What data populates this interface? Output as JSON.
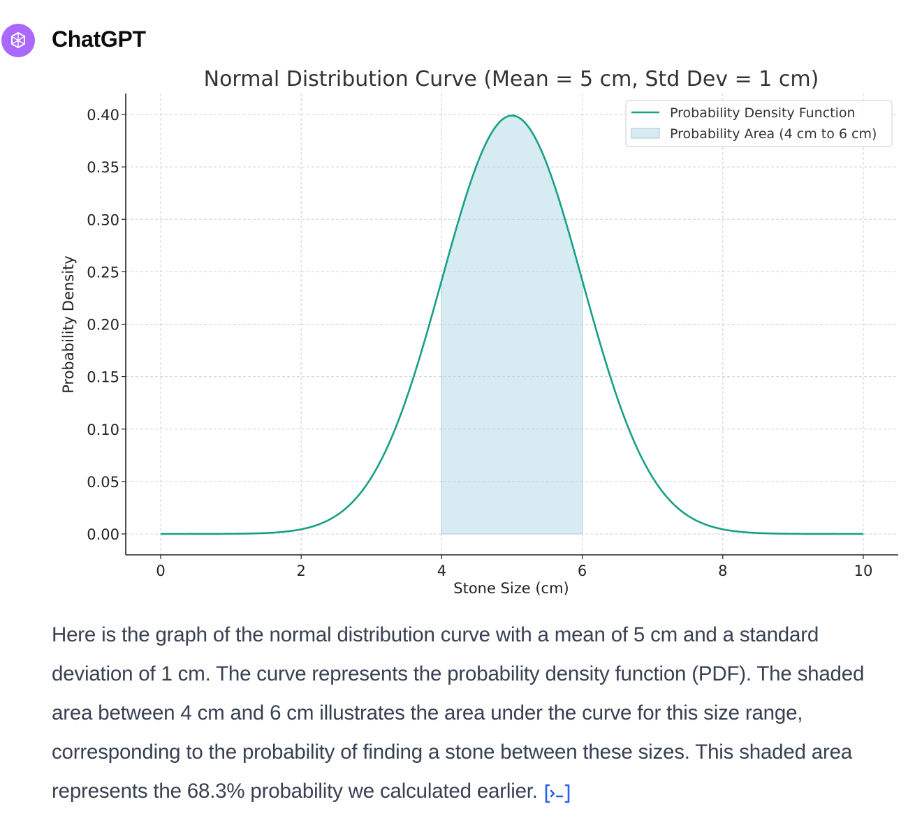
{
  "author": "ChatGPT",
  "message_text": "Here is the graph of the normal distribution curve with a mean of 5 cm and a standard deviation of 1 cm. The curve represents the probability density function (PDF). The shaded area between 4 cm and 6 cm illustrates the area under the curve for this size range, corresponding to the probability of finding a stone between these sizes. This shaded area represents the 68.3% probability we calculated earlier.",
  "icons": {
    "avatar": "openai-logo-icon",
    "analysis": "code-analysis-icon"
  },
  "colors": {
    "avatar_bg": "#ab68ff",
    "curve": "#16a085",
    "shade": "#add8e6"
  },
  "chart_data": {
    "type": "line",
    "title": "Normal Distribution Curve (Mean = 5 cm, Std Dev = 1 cm)",
    "xlabel": "Stone Size (cm)",
    "ylabel": "Probability Density",
    "xlim": [
      0,
      10
    ],
    "ylim": [
      0,
      0.4
    ],
    "xticks": [
      "0",
      "2",
      "4",
      "6",
      "8",
      "10"
    ],
    "yticks": [
      "0.00",
      "0.05",
      "0.10",
      "0.15",
      "0.20",
      "0.25",
      "0.30",
      "0.35",
      "0.40"
    ],
    "grid": true,
    "legend_position": "top-right",
    "series": [
      {
        "name": "Probability Density Function",
        "kind": "line",
        "mean": 5,
        "std": 1,
        "x": [
          0,
          0.5,
          1,
          1.5,
          2,
          2.5,
          3,
          3.5,
          4,
          4.5,
          5,
          5.5,
          6,
          6.5,
          7,
          7.5,
          8,
          8.5,
          9,
          9.5,
          10
        ],
        "y": [
          0.0,
          0.0,
          0.0001,
          0.0009,
          0.0044,
          0.0175,
          0.054,
          0.1295,
          0.242,
          0.3521,
          0.3989,
          0.3521,
          0.242,
          0.1295,
          0.054,
          0.0175,
          0.0044,
          0.0009,
          0.0001,
          0.0,
          0.0
        ]
      },
      {
        "name": "Probability Area (4 cm to 6 cm)",
        "kind": "area",
        "from": 4,
        "to": 6
      }
    ]
  }
}
